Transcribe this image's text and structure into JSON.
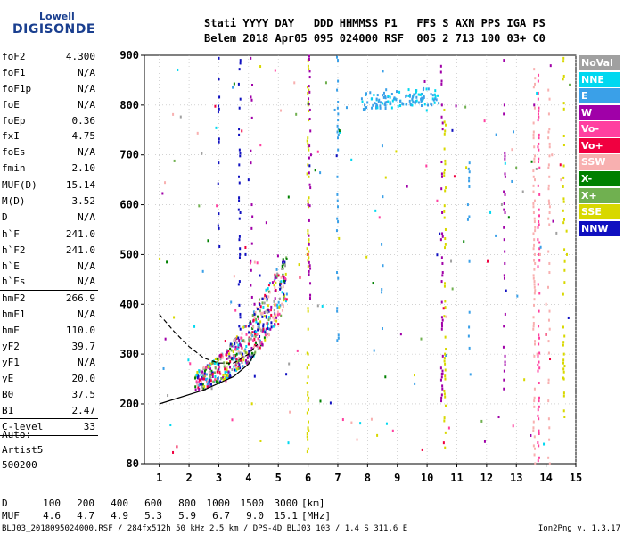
{
  "logo": {
    "line1": "Lowell",
    "line2": "DIGISONDE"
  },
  "header": {
    "line1": "Stati YYYY DAY   DDD HHMMSS P1   FFS S AXN PPS IGA PS",
    "line2": "Belem 2018 Apr05 095 024000 RSF  005 2 713 100 03+ C0"
  },
  "params": [
    {
      "label": "foF2",
      "value": "4.300",
      "sep": false
    },
    {
      "label": "foF1",
      "value": "N/A",
      "sep": false
    },
    {
      "label": "foF1p",
      "value": "N/A",
      "sep": false
    },
    {
      "label": "foE",
      "value": "N/A",
      "sep": false
    },
    {
      "label": "foEp",
      "value": "0.36",
      "sep": false
    },
    {
      "label": "fxI",
      "value": "4.75",
      "sep": false
    },
    {
      "label": "foEs",
      "value": "N/A",
      "sep": false
    },
    {
      "label": "fmin",
      "value": "2.10",
      "sep": true
    },
    {
      "label": "MUF(D)",
      "value": "15.14",
      "sep": false
    },
    {
      "label": "M(D)",
      "value": "3.52",
      "sep": false
    },
    {
      "label": "D",
      "value": "N/A",
      "sep": true
    },
    {
      "label": "h`F",
      "value": "241.0",
      "sep": false
    },
    {
      "label": "h`F2",
      "value": "241.0",
      "sep": false
    },
    {
      "label": "h`E",
      "value": "N/A",
      "sep": false
    },
    {
      "label": "h`Es",
      "value": "N/A",
      "sep": true
    },
    {
      "label": "hmF2",
      "value": "266.9",
      "sep": false
    },
    {
      "label": "hmF1",
      "value": "N/A",
      "sep": false
    },
    {
      "label": "hmE",
      "value": "110.0",
      "sep": false
    },
    {
      "label": "yF2",
      "value": "39.7",
      "sep": false
    },
    {
      "label": "yF1",
      "value": "N/A",
      "sep": false
    },
    {
      "label": "yE",
      "value": "20.0",
      "sep": false
    },
    {
      "label": "B0",
      "value": "37.5",
      "sep": false
    },
    {
      "label": "B1",
      "value": "2.47",
      "sep": true
    },
    {
      "label": "C-level",
      "value": "33",
      "sep": true
    }
  ],
  "auto": {
    "line1": "Auto:",
    "line2": "Artist5",
    "line3": "500200"
  },
  "footer_table": {
    "d_label": "D",
    "d_values": [
      "100",
      "200",
      "400",
      "600",
      "800",
      "1000",
      "1500",
      "3000"
    ],
    "d_unit": "[km]",
    "muf_label": "MUF",
    "muf_values": [
      "4.6",
      "4.7",
      "4.9",
      "5.3",
      "5.9",
      "6.7",
      "9.0",
      "15.1"
    ],
    "muf_unit": "[MHz]"
  },
  "footer": {
    "left": "BLJ03_2018095024000.RSF / 284fx512h 50 kHz 2.5 km / DPS-4D BLJ03 103 / 1.4 S 311.6 E",
    "right": "Ion2Png v. 1.3.17"
  },
  "legend": [
    {
      "label": "NoVal",
      "color": "#a0a0a0"
    },
    {
      "label": "NNE",
      "color": "#00d8f0"
    },
    {
      "label": "E",
      "color": "#3aa0e8"
    },
    {
      "label": "W",
      "color": "#a000a8"
    },
    {
      "label": "Vo-",
      "color": "#ff40a0"
    },
    {
      "label": "Vo+",
      "color": "#f00040"
    },
    {
      "label": "SSW",
      "color": "#f8b0b0"
    },
    {
      "label": "X-",
      "color": "#008000"
    },
    {
      "label": "X+",
      "color": "#70b050"
    },
    {
      "label": "SSE",
      "color": "#d8d800"
    },
    {
      "label": "NNW",
      "color": "#1010c0"
    }
  ],
  "chart_data": {
    "type": "scatter",
    "title": "",
    "xlabel": "",
    "ylabel": "",
    "xlim": [
      0.5,
      15
    ],
    "ylim": [
      80,
      900
    ],
    "x_ticks": [
      "1",
      "2",
      "3",
      "4",
      "5",
      "6",
      "7",
      "8",
      "9",
      "10",
      "11",
      "12",
      "13",
      "14",
      "15"
    ],
    "y_ticks": [
      "80",
      "200",
      "300",
      "400",
      "500",
      "600",
      "700",
      "800",
      "900"
    ],
    "grid": true,
    "series": [
      {
        "name": "E",
        "points": [
          [
            7.9,
            800
          ],
          [
            8.3,
            802
          ],
          [
            8.6,
            805
          ],
          [
            9.1,
            808
          ],
          [
            9.5,
            812
          ],
          [
            9.9,
            815
          ],
          [
            10.2,
            820
          ],
          [
            6.9,
            790
          ],
          [
            7.3,
            795
          ]
        ]
      },
      {
        "name": "W",
        "points": [
          [
            4.0,
            300
          ],
          [
            4.2,
            400
          ],
          [
            4.6,
            350
          ],
          [
            6.0,
            600
          ],
          [
            6.1,
            700
          ],
          [
            10.5,
            260
          ],
          [
            12.6,
            800
          ],
          [
            13.6,
            800
          ]
        ]
      },
      {
        "name": "Vo+",
        "points": [
          [
            2.5,
            250
          ],
          [
            2.8,
            260
          ],
          [
            3.2,
            270
          ],
          [
            3.6,
            290
          ],
          [
            4.0,
            320
          ],
          [
            4.5,
            350
          ],
          [
            5.0,
            360
          ],
          [
            6.0,
            500
          ]
        ]
      },
      {
        "name": "SSE",
        "points": [
          [
            6.0,
            150
          ],
          [
            6.0,
            300
          ],
          [
            5.7,
            480
          ],
          [
            10.6,
            300
          ],
          [
            14.6,
            250
          ],
          [
            14.7,
            500
          ]
        ]
      },
      {
        "name": "NNW",
        "points": [
          [
            3.0,
            280
          ],
          [
            3.4,
            320
          ],
          [
            3.8,
            300
          ],
          [
            4.2,
            380
          ],
          [
            4.0,
            650
          ],
          [
            3.9,
            500
          ]
        ]
      },
      {
        "name": "SSW",
        "points": [
          [
            13.7,
            300
          ],
          [
            13.8,
            500
          ],
          [
            14.0,
            400
          ],
          [
            14.2,
            700
          ],
          [
            14.5,
            650
          ]
        ]
      }
    ],
    "curve_solid": [
      [
        1.0,
        200
      ],
      [
        2.5,
        228
      ],
      [
        3.5,
        255
      ],
      [
        4.0,
        280
      ],
      [
        4.2,
        300
      ]
    ],
    "curve_dashed": [
      [
        1.0,
        380
      ],
      [
        1.5,
        345
      ],
      [
        2.0,
        315
      ],
      [
        2.5,
        292
      ],
      [
        3.0,
        282
      ],
      [
        3.5,
        282
      ],
      [
        4.0,
        300
      ],
      [
        4.3,
        320
      ]
    ]
  }
}
